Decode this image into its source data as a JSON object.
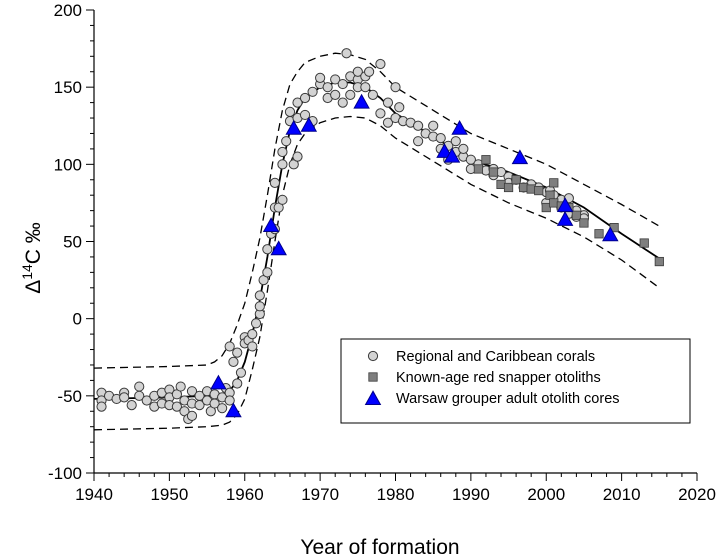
{
  "chart_data": {
    "type": "scatter",
    "xlabel": "Year of formation",
    "ylabel_parts": [
      "Δ",
      "14",
      "C ‰"
    ],
    "xlim": [
      1940,
      2020
    ],
    "ylim": [
      -100,
      200
    ],
    "x_ticks": [
      "1940",
      "1950",
      "1960",
      "1970",
      "1980",
      "1990",
      "2000",
      "2010",
      "2020"
    ],
    "y_ticks": [
      "-100",
      "-50",
      "0",
      "50",
      "100",
      "150",
      "200"
    ],
    "grid": false,
    "legend_position": "bottom-right",
    "colors": {
      "corals_fill": "#d3d3d3",
      "snapper_fill": "#7f7f7f",
      "grouper_fill": "#0000ff",
      "line": "#000000"
    },
    "series": [
      {
        "name": "Regional and Caribbean corals",
        "marker": "circle",
        "points": [
          [
            1941,
            -48
          ],
          [
            1941,
            -53
          ],
          [
            1941,
            -57
          ],
          [
            1942,
            -50
          ],
          [
            1943,
            -52
          ],
          [
            1944,
            -48
          ],
          [
            1944,
            -51
          ],
          [
            1945,
            -56
          ],
          [
            1946,
            -44
          ],
          [
            1946,
            -50
          ],
          [
            1947,
            -53
          ],
          [
            1948,
            -50
          ],
          [
            1948,
            -57
          ],
          [
            1949,
            -48
          ],
          [
            1949,
            -55
          ],
          [
            1950,
            -46
          ],
          [
            1950,
            -51
          ],
          [
            1950,
            -56
          ],
          [
            1951,
            -49
          ],
          [
            1951,
            -57
          ],
          [
            1951.5,
            -44
          ],
          [
            1952,
            -53
          ],
          [
            1952,
            -60
          ],
          [
            1952.5,
            -65
          ],
          [
            1953,
            -47
          ],
          [
            1953,
            -55
          ],
          [
            1953,
            -63
          ],
          [
            1954,
            -50
          ],
          [
            1954,
            -56
          ],
          [
            1955,
            -47
          ],
          [
            1955,
            -53
          ],
          [
            1955.5,
            -60
          ],
          [
            1956,
            -49
          ],
          [
            1956,
            -55
          ],
          [
            1957,
            -51
          ],
          [
            1957,
            -58
          ],
          [
            1957.5,
            -45
          ],
          [
            1958,
            -48
          ],
          [
            1958,
            -53
          ],
          [
            1958,
            -18
          ],
          [
            1958.5,
            -28
          ],
          [
            1959,
            -22
          ],
          [
            1959,
            -42
          ],
          [
            1959.5,
            -35
          ],
          [
            1960,
            -12
          ],
          [
            1960,
            -16
          ],
          [
            1960.5,
            -14
          ],
          [
            1961,
            -10
          ],
          [
            1961,
            -18
          ],
          [
            1961.5,
            -3
          ],
          [
            1962,
            3
          ],
          [
            1962,
            8
          ],
          [
            1962,
            15
          ],
          [
            1962.5,
            25
          ],
          [
            1963,
            30
          ],
          [
            1963,
            45
          ],
          [
            1963.5,
            55
          ],
          [
            1964,
            58
          ],
          [
            1964,
            72
          ],
          [
            1964,
            88
          ],
          [
            1964.5,
            72
          ],
          [
            1965,
            100
          ],
          [
            1965,
            108
          ],
          [
            1965,
            77
          ],
          [
            1965.5,
            115
          ],
          [
            1966,
            128
          ],
          [
            1966,
            134
          ],
          [
            1966.5,
            100
          ],
          [
            1967,
            140
          ],
          [
            1967,
            130
          ],
          [
            1967,
            105
          ],
          [
            1968,
            132
          ],
          [
            1968,
            143
          ],
          [
            1969,
            128
          ],
          [
            1969,
            147
          ],
          [
            1970,
            152
          ],
          [
            1970,
            156
          ],
          [
            1971,
            143
          ],
          [
            1971,
            150
          ],
          [
            1972,
            155
          ],
          [
            1972,
            145
          ],
          [
            1973,
            140
          ],
          [
            1973,
            152
          ],
          [
            1973.5,
            172
          ],
          [
            1974,
            157
          ],
          [
            1974,
            145
          ],
          [
            1975,
            155
          ],
          [
            1975,
            160
          ],
          [
            1975,
            150
          ],
          [
            1976,
            157
          ],
          [
            1976,
            150
          ],
          [
            1976.5,
            160
          ],
          [
            1977,
            145
          ],
          [
            1978,
            133
          ],
          [
            1978,
            165
          ],
          [
            1979,
            140
          ],
          [
            1979,
            127
          ],
          [
            1980,
            130
          ],
          [
            1980,
            150
          ],
          [
            1980.5,
            137
          ],
          [
            1981,
            128
          ],
          [
            1982,
            127
          ],
          [
            1983,
            115
          ],
          [
            1983,
            125
          ],
          [
            1984,
            120
          ],
          [
            1985,
            118
          ],
          [
            1985,
            125
          ],
          [
            1986,
            110
          ],
          [
            1986,
            117
          ],
          [
            1987,
            112
          ],
          [
            1987,
            103
          ],
          [
            1988,
            115
          ],
          [
            1988,
            108
          ],
          [
            1989,
            105
          ],
          [
            1989,
            110
          ],
          [
            1990,
            103
          ],
          [
            1990,
            97
          ],
          [
            1991,
            100
          ],
          [
            1992,
            96
          ],
          [
            1993,
            93
          ],
          [
            1993,
            97
          ],
          [
            1994,
            95
          ],
          [
            1995,
            92
          ],
          [
            1995,
            88
          ],
          [
            1996,
            90
          ],
          [
            1997,
            85
          ],
          [
            1998,
            87
          ],
          [
            1999,
            85
          ],
          [
            2000,
            75
          ],
          [
            2000,
            82
          ],
          [
            2000.5,
            83
          ],
          [
            2001,
            80
          ],
          [
            2002,
            77
          ],
          [
            2002,
            72
          ],
          [
            2003,
            78
          ],
          [
            2003,
            68
          ],
          [
            2004,
            70
          ],
          [
            2004,
            66
          ],
          [
            2005,
            67
          ],
          [
            2005,
            65
          ]
        ]
      },
      {
        "name": "Known-age red snapper otoliths",
        "marker": "square",
        "points": [
          [
            1991,
            97
          ],
          [
            1992,
            103
          ],
          [
            1993,
            95
          ],
          [
            1994,
            87
          ],
          [
            1995,
            85
          ],
          [
            1996,
            90
          ],
          [
            1997,
            85
          ],
          [
            1998,
            84
          ],
          [
            1999,
            83
          ],
          [
            2000,
            72
          ],
          [
            2000.5,
            80
          ],
          [
            2001,
            88
          ],
          [
            2001,
            75
          ],
          [
            2002,
            73
          ],
          [
            2003,
            72
          ],
          [
            2004,
            67
          ],
          [
            2005,
            62
          ],
          [
            2007,
            55
          ],
          [
            2009,
            59
          ],
          [
            2013,
            49
          ],
          [
            2015,
            37
          ]
        ]
      },
      {
        "name": "Warsaw grouper adult otolith cores",
        "marker": "triangle",
        "points": [
          [
            1956.5,
            -42
          ],
          [
            1958.5,
            -60
          ],
          [
            1963.5,
            60
          ],
          [
            1964.5,
            45
          ],
          [
            1966.5,
            123
          ],
          [
            1968.5,
            125
          ],
          [
            1975.5,
            140
          ],
          [
            1986.5,
            108
          ],
          [
            1987.5,
            105
          ],
          [
            1988.5,
            123
          ],
          [
            1996.5,
            104
          ],
          [
            2002.5,
            73
          ],
          [
            2002.5,
            64
          ],
          [
            2008.5,
            54
          ]
        ]
      }
    ],
    "fit_line": {
      "x": [
        1940,
        1950,
        1955,
        1957,
        1958,
        1959,
        1960,
        1961,
        1962,
        1963,
        1964,
        1965,
        1966,
        1967,
        1968,
        1970,
        1972,
        1974,
        1976,
        1978,
        1980,
        1985,
        1990,
        1995,
        2000,
        2005,
        2010,
        2015
      ],
      "y": [
        -52,
        -51,
        -50,
        -49,
        -47,
        -40,
        -28,
        -10,
        12,
        40,
        72,
        100,
        122,
        135,
        143,
        150,
        153,
        153,
        150,
        143,
        133,
        118,
        103,
        95,
        85,
        72,
        55,
        39
      ]
    },
    "band_upper": {
      "x": [
        1940,
        1950,
        1955,
        1956,
        1957,
        1958,
        1959,
        1960,
        1961,
        1962,
        1963,
        1964,
        1965,
        1966,
        1967,
        1968,
        1970,
        1972,
        1974,
        1976,
        1978,
        1980,
        1985,
        1990,
        1995,
        2000,
        2005,
        2010,
        2015
      ],
      "y": [
        -32,
        -31,
        -30,
        -28,
        -24,
        -16,
        -4,
        10,
        30,
        52,
        80,
        110,
        135,
        152,
        160,
        166,
        170,
        172,
        171,
        168,
        160,
        150,
        135,
        120,
        110,
        100,
        87,
        74,
        60
      ]
    },
    "band_lower": {
      "x": [
        1940,
        1950,
        1955,
        1957,
        1958,
        1959,
        1960,
        1961,
        1962,
        1963,
        1964,
        1965,
        1966,
        1967,
        1968,
        1970,
        1972,
        1974,
        1976,
        1978,
        1980,
        1985,
        1990,
        1995,
        2000,
        2005,
        2010,
        2015
      ],
      "y": [
        -72,
        -71,
        -70,
        -69,
        -67,
        -62,
        -52,
        -33,
        -12,
        18,
        50,
        80,
        100,
        113,
        120,
        127,
        130,
        131,
        130,
        125,
        117,
        102,
        87,
        75,
        65,
        53,
        38,
        20
      ]
    }
  }
}
